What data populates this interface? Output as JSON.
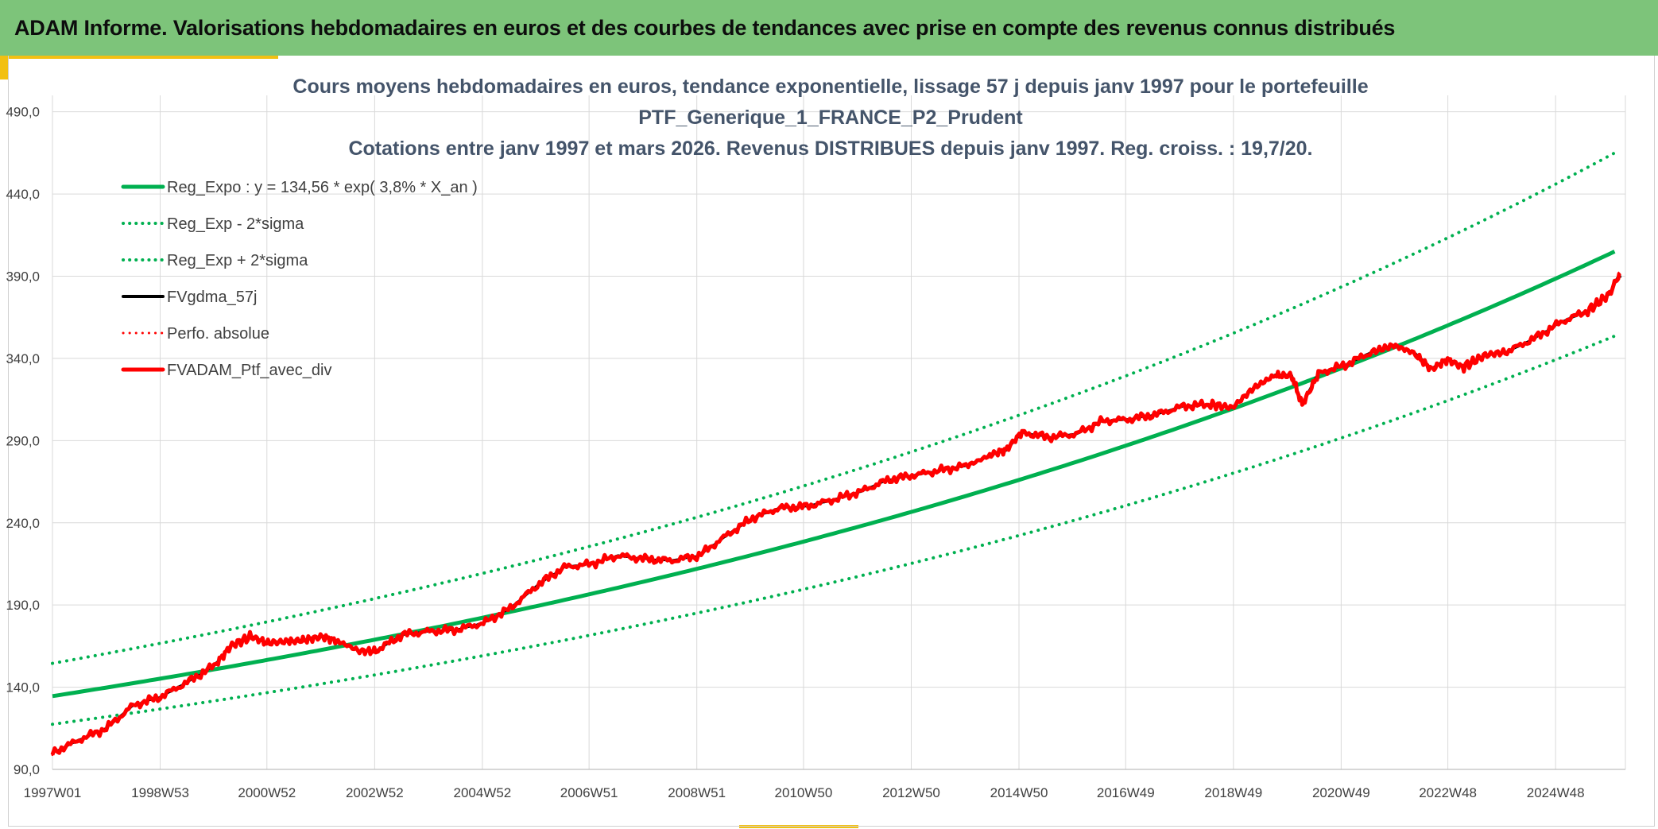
{
  "header": {
    "title": "ADAM Informe. Valorisations hebdomadaires en euros et des courbes de tendances avec prise en compte des revenus connus distribués"
  },
  "colors": {
    "header_bg": "#7dc47a",
    "accent": "#f2c012",
    "trend": "#00b050",
    "smoothed": "#000000",
    "portfolio": "#ff0000"
  },
  "chart_data": {
    "type": "line",
    "title": [
      "Cours moyens hebdomadaires en euros, tendance exponentielle, lissage 57 j depuis janv 1997 pour le portefeuille",
      "PTF_Generique_1_FRANCE_P2_Prudent",
      "Cotations entre janv 1997 et mars 2026. Revenus DISTRIBUES depuis janv 1997. Reg. croiss. : 19,7/20."
    ],
    "xlabel": "",
    "ylabel": "",
    "x_range": [
      "1997W01",
      "2026W10"
    ],
    "x_ticks": [
      "1997W01",
      "1998W53",
      "2000W52",
      "2002W52",
      "2004W52",
      "2006W51",
      "2008W51",
      "2010W50",
      "2012W50",
      "2014W50",
      "2016W49",
      "2018W49",
      "2020W49",
      "2022W48",
      "2024W48"
    ],
    "ylim": [
      90,
      500
    ],
    "y_ticks": [
      "90,0",
      "140,0",
      "190,0",
      "240,0",
      "290,0",
      "340,0",
      "390,0",
      "440,0",
      "490,0"
    ],
    "grid": true,
    "legend_position": "top-left",
    "regression": {
      "a": 134.56,
      "rate_pct": 3.8,
      "sigma_band_factors": [
        0.873,
        1.148
      ]
    },
    "series": [
      {
        "name": "Reg_Expo : y = 134,56 * exp( 3,8% *  X_an )",
        "style": "solid",
        "color": "#00b050",
        "width": 5,
        "kind": "trend"
      },
      {
        "name": "Reg_Exp - 2*sigma",
        "style": "dotted",
        "color": "#00b050",
        "width": 4,
        "kind": "lower"
      },
      {
        "name": "Reg_Exp + 2*sigma",
        "style": "dotted",
        "color": "#00b050",
        "width": 4,
        "kind": "upper"
      },
      {
        "name": "FVgdma_57j",
        "style": "solid",
        "color": "#000000",
        "width": 4,
        "kind": "smoothed"
      },
      {
        "name": "Perfo. absolue",
        "style": "dotted",
        "color": "#ff0000",
        "width": 3,
        "kind": "absolute"
      },
      {
        "name": "FVADAM_Ptf_avec_div",
        "style": "solid",
        "color": "#ff0000",
        "width": 5,
        "kind": "portfolio",
        "x_year": [
          1997.0,
          1997.5,
          1998.0,
          1998.5,
          1999.0,
          1999.5,
          2000.0,
          2000.3,
          2000.7,
          2001.0,
          2001.4,
          2001.7,
          2002.0,
          2002.3,
          2002.7,
          2003.0,
          2003.5,
          2004.0,
          2004.5,
          2005.0,
          2005.5,
          2006.0,
          2006.5,
          2007.0,
          2007.5,
          2008.0,
          2008.5,
          2009.0,
          2009.5,
          2010.0,
          2010.5,
          2011.0,
          2011.5,
          2012.0,
          2012.5,
          2013.0,
          2013.5,
          2014.0,
          2014.4,
          2014.7,
          2015.0,
          2015.5,
          2016.0,
          2016.5,
          2017.0,
          2017.5,
          2018.0,
          2018.5,
          2018.9,
          2019.3,
          2019.7,
          2020.0,
          2020.2,
          2020.5,
          2021.0,
          2021.5,
          2021.9,
          2022.3,
          2022.6,
          2022.9,
          2023.2,
          2023.6,
          2024.0,
          2024.5,
          2025.0,
          2025.5,
          2025.9,
          2026.1
        ],
        "values": [
          100,
          108,
          115,
          129,
          134,
          143,
          153,
          165,
          171,
          167,
          168,
          169,
          171,
          168,
          162,
          162,
          172,
          174,
          175,
          179,
          188,
          202,
          213,
          215,
          220,
          218,
          217,
          220,
          232,
          243,
          249,
          250,
          254,
          259,
          266,
          269,
          272,
          275,
          281,
          284,
          295,
          292,
          294,
          302,
          303,
          306,
          311,
          312,
          310,
          322,
          330,
          330,
          312,
          331,
          336,
          344,
          348,
          343,
          334,
          340,
          335,
          342,
          344,
          352,
          362,
          369,
          379,
          392
        ]
      }
    ]
  }
}
